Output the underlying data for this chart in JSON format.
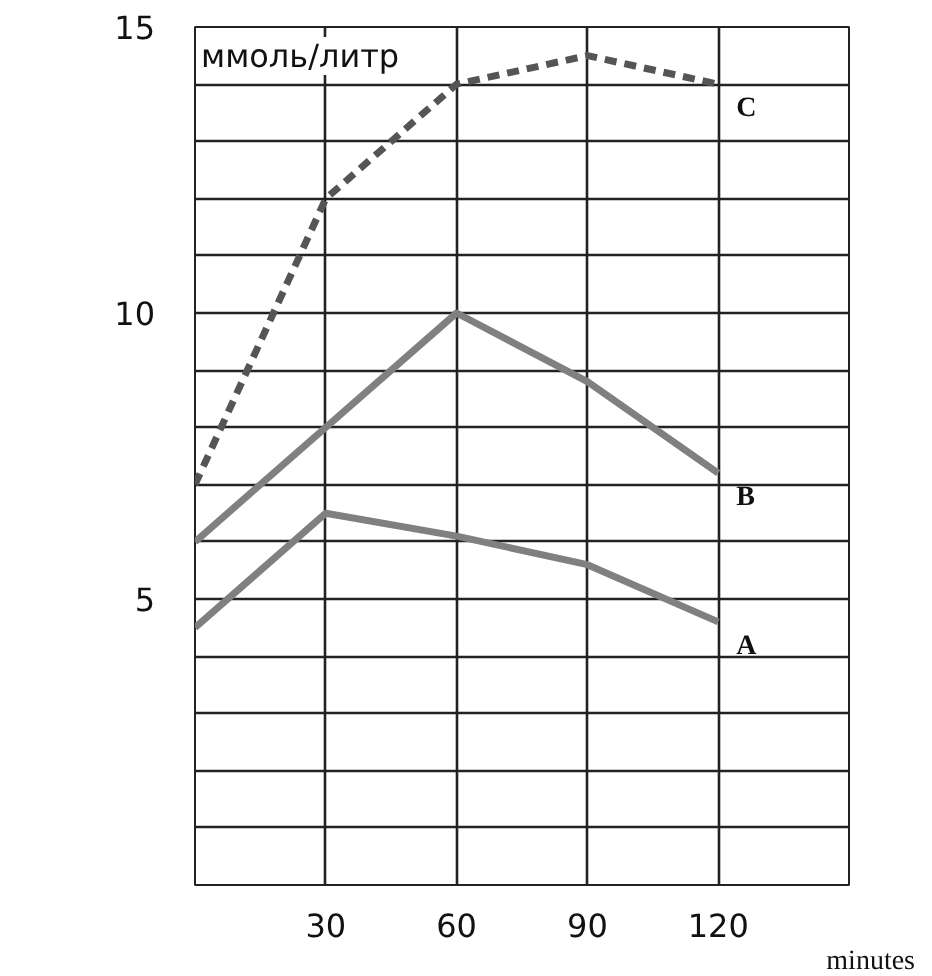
{
  "chart_data": {
    "type": "line",
    "ylabel": "ммоль/литр",
    "xlabel": "minutes",
    "x": [
      0,
      30,
      60,
      90,
      120
    ],
    "series": [
      {
        "name": "A",
        "color": "#808080",
        "line_style": "solid",
        "values": [
          4.5,
          6.5,
          6.1,
          5.6,
          4.6
        ]
      },
      {
        "name": "B",
        "color": "#808080",
        "line_style": "solid",
        "values": [
          6,
          8,
          10,
          8.8,
          7.2
        ]
      },
      {
        "name": "C",
        "color": "#555555",
        "line_style": "dashed",
        "values": [
          7,
          12,
          14,
          14.5,
          14
        ]
      }
    ],
    "xlim": [
      0,
      150
    ],
    "ylim": [
      0,
      15
    ],
    "xticks": [
      {
        "value": 0,
        "label": null
      },
      30,
      60,
      90,
      120,
      {
        "value": 150,
        "label": null
      }
    ],
    "yticks": [
      {
        "value": 0,
        "label": null
      },
      {
        "value": 1,
        "label": null
      },
      {
        "value": 2,
        "label": null
      },
      {
        "value": 3,
        "label": null
      },
      {
        "value": 4,
        "label": null
      },
      5,
      {
        "value": 6,
        "label": null
      },
      {
        "value": 7,
        "label": null
      },
      {
        "value": 8,
        "label": null
      },
      {
        "value": 9,
        "label": null
      },
      10,
      {
        "value": 11,
        "label": null
      },
      {
        "value": 12,
        "label": null
      },
      {
        "value": 13,
        "label": null
      },
      {
        "value": 14,
        "label": null
      },
      15
    ],
    "grid": true,
    "legend": false,
    "marker": "none"
  }
}
